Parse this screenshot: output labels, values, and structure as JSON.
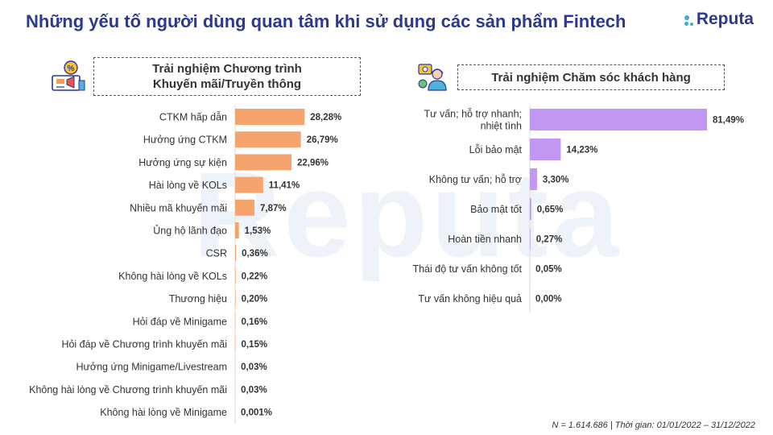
{
  "title": "Những yếu tố người dùng quan tâm khi sử dụng các sản phẩm Fintech",
  "logo": {
    "text": "Reputa",
    "color": "#2b3990",
    "dot_color": "#3da9e0"
  },
  "watermark": "Reputa",
  "left_panel": {
    "header_line1": "Trải nghiệm Chương trình",
    "header_line2": "Khuyến mãi/Truyền thông",
    "icon": "promotion-megaphone-icon"
  },
  "right_panel": {
    "header": "Trải nghiệm Chăm sóc khách hàng",
    "icon": "customer-support-agent-icon"
  },
  "footnote": "N = 1.614.686 | Thời gian: 01/01/2022 – 31/12/2022",
  "chart_data": [
    {
      "type": "bar",
      "orientation": "horizontal",
      "color": "#f6a46e",
      "categories": [
        "CTKM hấp dẫn",
        "Hưởng ứng CTKM",
        "Hưởng ứng sự kiện",
        "Hài lòng về KOLs",
        "Nhiều mã khuyến mãi",
        "Ủng hộ lãnh đạo",
        "CSR",
        "Không hài lòng về KOLs",
        "Thương hiệu",
        "Hỏi đáp về Minigame",
        "Hỏi đáp về Chương trình khuyến mãi",
        "Hưởng ứng Minigame/Livestream",
        "Không hài lòng về Chương trình khuyến mãi",
        "Không hài lòng về Minigame"
      ],
      "values": [
        28.28,
        26.79,
        22.96,
        11.41,
        7.87,
        1.53,
        0.36,
        0.22,
        0.2,
        0.16,
        0.15,
        0.03,
        0.03,
        0.001
      ],
      "labels": [
        "28,28%",
        "26,79%",
        "22,96%",
        "11,41%",
        "7,87%",
        "1,53%",
        "0,36%",
        "0,22%",
        "0,20%",
        "0,16%",
        "0,15%",
        "0,03%",
        "0,03%",
        "0,001%"
      ],
      "xlim": [
        0,
        100
      ]
    },
    {
      "type": "bar",
      "orientation": "horizontal",
      "color": "#c197f3",
      "categories": [
        [
          "Tư vấn; hỗ trợ nhanh;",
          "nhiệt tình"
        ],
        "Lỗi bảo mật",
        "Không tư vấn; hỗ trợ",
        "Bảo mật tốt",
        "Hoàn tiền nhanh",
        "Thái độ tư vấn không tốt",
        "Tư vấn không hiệu quả"
      ],
      "values": [
        81.49,
        14.23,
        3.3,
        0.65,
        0.27,
        0.05,
        0.0
      ],
      "labels": [
        "81,49%",
        "14,23%",
        "3,30%",
        "0,65%",
        "0,27%",
        "0,05%",
        "0,00%"
      ],
      "xlim": [
        0,
        100
      ]
    }
  ]
}
